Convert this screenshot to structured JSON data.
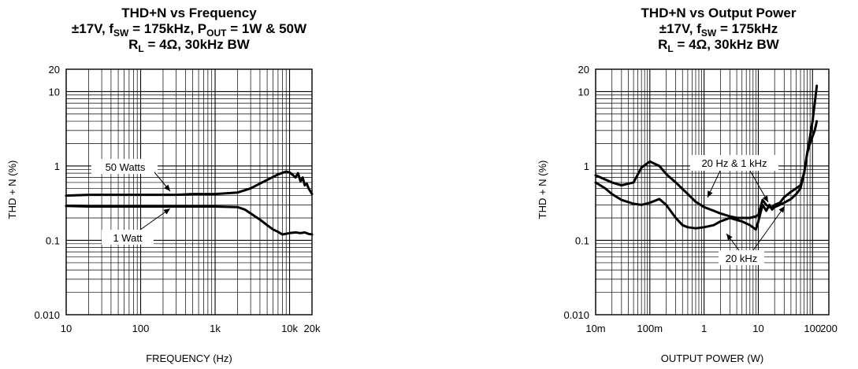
{
  "chart_data": [
    {
      "type": "line",
      "title_lines": [
        [
          {
            "t": "THD+N vs Frequency"
          }
        ],
        [
          {
            "t": "±17V, f"
          },
          {
            "t": "SW",
            "sub": true
          },
          {
            "t": " = 175kHz, P"
          },
          {
            "t": "OUT",
            "sub": true
          },
          {
            "t": " = 1W & 50W"
          }
        ],
        [
          {
            "t": "R"
          },
          {
            "t": "L",
            "sub": true
          },
          {
            "t": " = 4Ω, 30kHz BW"
          }
        ]
      ],
      "xlabel": "FREQUENCY (Hz)",
      "ylabel": "THD + N (%)",
      "xscale": "log",
      "yscale": "log",
      "xlim": [
        10,
        20000
      ],
      "ylim": [
        0.01,
        20
      ],
      "grid": true,
      "x_ticks": [
        {
          "v": 10,
          "label": "10"
        },
        {
          "v": 100,
          "label": "100"
        },
        {
          "v": 1000,
          "label": "1k"
        },
        {
          "v": 10000,
          "label": "10k"
        },
        {
          "v": 20000,
          "label": "20k"
        }
      ],
      "y_ticks": [
        {
          "v": 0.01,
          "label": "0.010"
        },
        {
          "v": 0.1,
          "label": "0.1"
        },
        {
          "v": 1,
          "label": "1"
        },
        {
          "v": 10,
          "label": "10"
        },
        {
          "v": 20,
          "label": "20"
        }
      ],
      "series": [
        {
          "name": "50 Watts",
          "x": [
            10,
            20,
            50,
            100,
            200,
            300,
            500,
            1000,
            2000,
            3000,
            4000,
            5000,
            7000,
            9000,
            10000,
            11000,
            12000,
            13000,
            14000,
            15000,
            16000,
            17000,
            18000,
            20000
          ],
          "y": [
            0.4,
            0.41,
            0.41,
            0.41,
            0.41,
            0.41,
            0.42,
            0.42,
            0.44,
            0.5,
            0.58,
            0.65,
            0.77,
            0.84,
            0.82,
            0.76,
            0.7,
            0.8,
            0.62,
            0.7,
            0.55,
            0.58,
            0.5,
            0.42
          ]
        },
        {
          "name": "1 Watt",
          "x": [
            10,
            20,
            50,
            100,
            200,
            500,
            1000,
            2000,
            2500,
            3000,
            4000,
            5000,
            6000,
            7000,
            8000,
            10000,
            12000,
            14000,
            16000,
            18000,
            20000
          ],
          "y": [
            0.29,
            0.285,
            0.285,
            0.285,
            0.285,
            0.285,
            0.285,
            0.28,
            0.26,
            0.23,
            0.19,
            0.16,
            0.14,
            0.13,
            0.12,
            0.125,
            0.128,
            0.125,
            0.128,
            0.122,
            0.12
          ]
        }
      ],
      "annotations": [
        {
          "text": "50 Watts"
        },
        {
          "text": "1 Watt"
        }
      ]
    },
    {
      "type": "line",
      "title_lines": [
        [
          {
            "t": "THD+N vs Output Power"
          }
        ],
        [
          {
            "t": "±17V, f"
          },
          {
            "t": "SW",
            "sub": true
          },
          {
            "t": " = 175kHz"
          }
        ],
        [
          {
            "t": "R"
          },
          {
            "t": "L",
            "sub": true
          },
          {
            "t": " = 4Ω, 30kHz BW"
          }
        ]
      ],
      "xlabel": "OUTPUT POWER (W)",
      "ylabel": "THD + N (%)",
      "xscale": "log",
      "yscale": "log",
      "xlim": [
        0.01,
        200
      ],
      "ylim": [
        0.01,
        20
      ],
      "grid": true,
      "x_ticks": [
        {
          "v": 0.01,
          "label": "10m"
        },
        {
          "v": 0.1,
          "label": "100m"
        },
        {
          "v": 1,
          "label": "1"
        },
        {
          "v": 10,
          "label": "10"
        },
        {
          "v": 100,
          "label": "100"
        },
        {
          "v": 200,
          "label": "200"
        }
      ],
      "y_ticks": [
        {
          "v": 0.01,
          "label": "0.010"
        },
        {
          "v": 0.1,
          "label": "0.1"
        },
        {
          "v": 1,
          "label": "1"
        },
        {
          "v": 10,
          "label": "10"
        },
        {
          "v": 20,
          "label": "20"
        }
      ],
      "series": [
        {
          "name": "20 Hz & 1 kHz",
          "x": [
            0.01,
            0.02,
            0.03,
            0.05,
            0.07,
            0.1,
            0.15,
            0.2,
            0.3,
            0.5,
            0.7,
            1,
            1.5,
            2,
            3,
            4,
            5,
            7,
            9,
            10,
            12,
            14,
            16,
            18,
            20,
            25,
            30,
            40,
            50,
            60,
            70,
            80,
            90,
            100,
            110,
            120
          ],
          "y": [
            0.75,
            0.6,
            0.55,
            0.6,
            0.95,
            1.15,
            1.0,
            0.78,
            0.6,
            0.42,
            0.33,
            0.28,
            0.25,
            0.23,
            0.21,
            0.2,
            0.2,
            0.2,
            0.21,
            0.22,
            0.35,
            0.3,
            0.28,
            0.28,
            0.3,
            0.32,
            0.38,
            0.45,
            0.5,
            0.55,
            0.8,
            1.5,
            2.5,
            4.0,
            7.0,
            12.0
          ]
        },
        {
          "name": "20 kHz",
          "x": [
            0.01,
            0.015,
            0.02,
            0.03,
            0.05,
            0.07,
            0.1,
            0.15,
            0.2,
            0.3,
            0.4,
            0.5,
            0.7,
            1,
            1.5,
            2,
            3,
            5,
            7,
            9,
            10,
            12,
            14,
            16,
            18,
            20,
            25,
            30,
            40,
            50,
            60,
            70,
            80,
            90,
            100,
            110,
            120
          ],
          "y": [
            0.6,
            0.5,
            0.42,
            0.35,
            0.31,
            0.3,
            0.32,
            0.36,
            0.3,
            0.2,
            0.16,
            0.15,
            0.145,
            0.15,
            0.16,
            0.18,
            0.2,
            0.18,
            0.16,
            0.14,
            0.18,
            0.3,
            0.25,
            0.3,
            0.26,
            0.28,
            0.3,
            0.32,
            0.36,
            0.42,
            0.5,
            0.8,
            1.5,
            2.0,
            2.5,
            3.0,
            4.0
          ]
        }
      ],
      "annotations": [
        {
          "text": "20 Hz & 1 kHz"
        },
        {
          "text": "20 kHz"
        }
      ]
    }
  ]
}
